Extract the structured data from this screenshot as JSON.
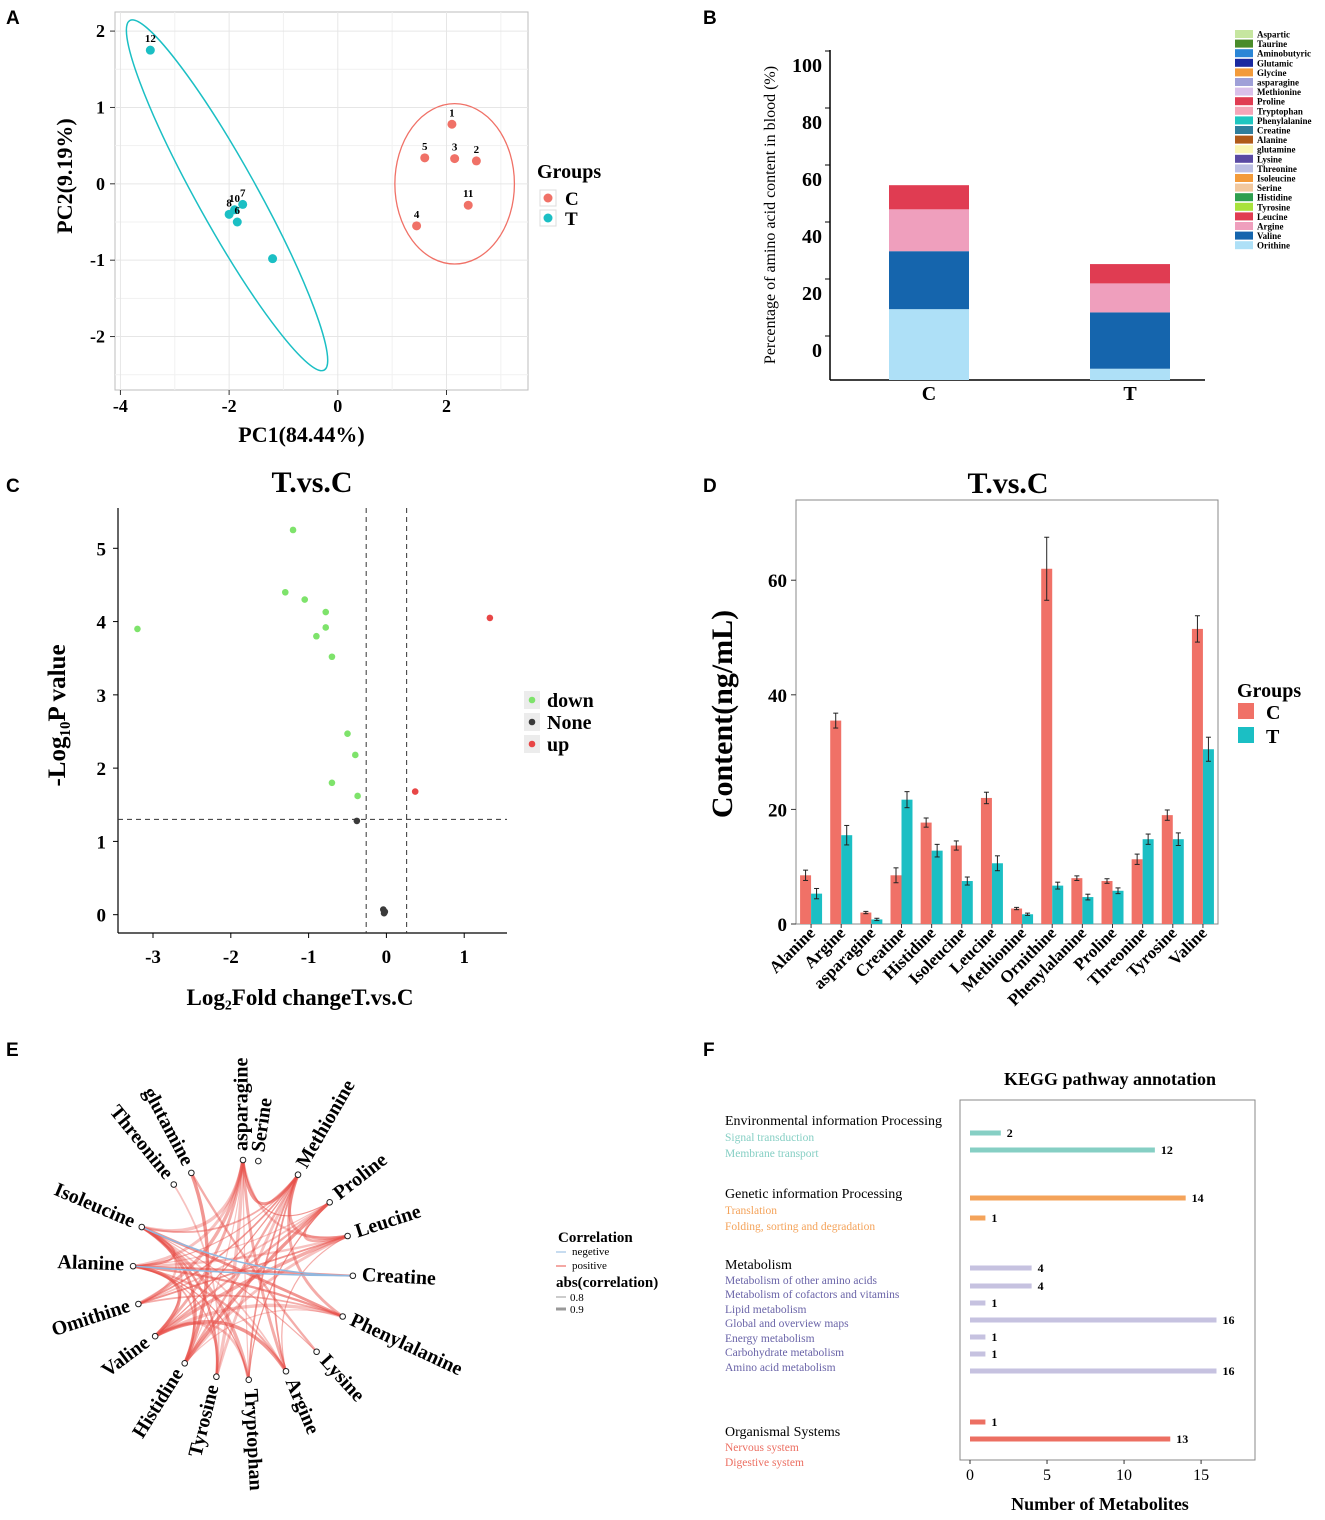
{
  "panel_labels": {
    "a": "A",
    "b": "B",
    "c": "C",
    "d": "D",
    "e": "E",
    "f": "F"
  },
  "colors": {
    "C": "#f07167",
    "T": "#1bbfc4",
    "down": "#7ee36b",
    "none": "#3a3a3a",
    "up": "#e84646"
  },
  "chart_data": [
    {
      "id": "pca",
      "type": "scatter",
      "title": "",
      "xlabel": "PC1(84.44%)",
      "ylabel": "PC2(9.19%)",
      "xlim": [
        -4.1,
        3.5
      ],
      "ylim": [
        -2.7,
        2.25
      ],
      "xticks": [
        -4,
        -2,
        0,
        2
      ],
      "yticks": [
        -2,
        -1,
        0,
        1,
        2
      ],
      "legend_title": "Groups",
      "legend": [
        "C",
        "T"
      ],
      "series": [
        {
          "name": "C",
          "points": [
            {
              "x": 2.1,
              "y": 0.78,
              "label": "1"
            },
            {
              "x": 2.55,
              "y": 0.3,
              "label": "2"
            },
            {
              "x": 2.15,
              "y": 0.33,
              "label": "3"
            },
            {
              "x": 1.45,
              "y": -0.55,
              "label": "4"
            },
            {
              "x": 1.6,
              "y": 0.34,
              "label": "5"
            },
            {
              "x": 2.4,
              "y": -0.28,
              "label": "11"
            }
          ]
        },
        {
          "name": "T",
          "points": [
            {
              "x": -3.45,
              "y": 1.75,
              "label": "12"
            },
            {
              "x": -1.9,
              "y": -0.34,
              "label": "10"
            },
            {
              "x": -1.75,
              "y": -0.27,
              "label": "7"
            },
            {
              "x": -2.0,
              "y": -0.4,
              "label": "8"
            },
            {
              "x": -1.85,
              "y": -0.5,
              "label": "6"
            },
            {
              "x": -1.2,
              "y": -0.98,
              "label": ""
            }
          ]
        }
      ]
    },
    {
      "id": "composition",
      "type": "bar",
      "stacked": true,
      "ylabel": "Percentage of amino acid content in blood (%)",
      "yticks": [
        0,
        20,
        40,
        60,
        80,
        100
      ],
      "categories": [
        "C",
        "T"
      ],
      "legend": [
        "Aspartic",
        "Taurine",
        "Aminobutyric",
        "Glutamic",
        "Glycine",
        "asparagine",
        "Methionine",
        "Proline",
        "Tryptophan",
        "Phenylalanine",
        "Creatine",
        "Alanine",
        "glutamine",
        "Lysine",
        "Threonine",
        "Isoleucine",
        "Serine",
        "Histidine",
        "Tyrosine",
        "Leucine",
        "Argine",
        "Valine",
        "Orithine"
      ],
      "series": [
        {
          "name": "Orithine",
          "color": "#aee0f7",
          "values": [
            22.0,
            3.5
          ]
        },
        {
          "name": "Valine",
          "color": "#1565ad",
          "values": [
            18.0,
            17.5
          ]
        },
        {
          "name": "Argine",
          "color": "#ef9fbd",
          "values": [
            13.0,
            9.0
          ]
        },
        {
          "name": "Leucine",
          "color": "#e03c52",
          "values": [
            7.5,
            6.0
          ]
        },
        {
          "name": "Tyrosine",
          "color": "#a8e23c",
          "values": [
            0,
            0
          ]
        },
        {
          "name": "Histidine",
          "color": "#2e9e4e",
          "values": [
            0,
            0
          ]
        },
        {
          "name": "Serine",
          "color": "#f2c89e",
          "values": [
            0,
            0
          ]
        },
        {
          "name": "Isoleucine",
          "color": "#f39b3a",
          "values": [
            0,
            0
          ]
        },
        {
          "name": "Threonine",
          "color": "#bcbfe3",
          "values": [
            0,
            0
          ]
        },
        {
          "name": "Lysine",
          "color": "#5a4aa3",
          "values": [
            0,
            0
          ]
        },
        {
          "name": "glutamine",
          "color": "#fbf6b4",
          "values": [
            0,
            0
          ]
        },
        {
          "name": "Alanine",
          "color": "#b05a1a",
          "values": [
            0,
            0
          ]
        },
        {
          "name": "Creatine",
          "color": "#2f7e9c",
          "values": [
            0,
            0
          ]
        },
        {
          "name": "Phenylalanine",
          "color": "#1fc6c0",
          "values": [
            0,
            0
          ]
        },
        {
          "name": "Tryptophan",
          "color": "#f5a5b8",
          "values": [
            0,
            0
          ]
        },
        {
          "name": "Proline",
          "color": "#e03c52",
          "values": [
            0,
            0
          ]
        },
        {
          "name": "Methionine",
          "color": "#d9c0ea",
          "values": [
            0,
            0
          ]
        },
        {
          "name": "asparagine",
          "color": "#9fa0d8",
          "values": [
            0,
            0
          ]
        },
        {
          "name": "Glycine",
          "color": "#f39b3a",
          "values": [
            0,
            0
          ]
        },
        {
          "name": "Glutamic",
          "color": "#1a2aa0",
          "values": [
            0,
            0
          ]
        },
        {
          "name": "Aminobutyric",
          "color": "#2a86d6",
          "values": [
            0,
            0
          ]
        },
        {
          "name": "Taurine",
          "color": "#4a8c2a",
          "values": [
            0,
            0
          ]
        },
        {
          "name": "Aspartic",
          "color": "#c6e6a0",
          "values": [
            0,
            0
          ]
        }
      ]
    },
    {
      "id": "volcano",
      "type": "scatter",
      "title": "T.vs.C",
      "xlabel": "Log₂Fold changeT.vs.C",
      "ylabel": "-Log₁₀P value",
      "xlim": [
        -3.45,
        1.55
      ],
      "ylim": [
        -0.25,
        5.55
      ],
      "xticks": [
        -3,
        -2,
        -1,
        0,
        1
      ],
      "yticks": [
        0,
        1,
        2,
        3,
        4,
        5
      ],
      "cutoffs": {
        "x": [
          -0.26,
          0.26
        ],
        "y": 1.3
      },
      "legend": [
        "down",
        "None",
        "up"
      ],
      "series": [
        {
          "name": "down",
          "points": [
            {
              "x": -3.2,
              "y": 3.9
            },
            {
              "x": -1.2,
              "y": 5.25
            },
            {
              "x": -1.3,
              "y": 4.4
            },
            {
              "x": -1.05,
              "y": 4.3
            },
            {
              "x": -0.78,
              "y": 4.13
            },
            {
              "x": -0.78,
              "y": 3.92
            },
            {
              "x": -0.9,
              "y": 3.8
            },
            {
              "x": -0.7,
              "y": 3.52
            },
            {
              "x": -0.5,
              "y": 2.47
            },
            {
              "x": -0.4,
              "y": 2.18
            },
            {
              "x": -0.7,
              "y": 1.8
            },
            {
              "x": -0.37,
              "y": 1.62
            }
          ]
        },
        {
          "name": "None",
          "points": [
            {
              "x": -0.38,
              "y": 1.28
            },
            {
              "x": -0.04,
              "y": 0.07
            },
            {
              "x": -0.02,
              "y": 0.04
            },
            {
              "x": -0.03,
              "y": 0.02
            }
          ]
        },
        {
          "name": "up",
          "points": [
            {
              "x": 1.33,
              "y": 4.05
            },
            {
              "x": 0.37,
              "y": 1.68
            }
          ]
        }
      ]
    },
    {
      "id": "content",
      "type": "bar",
      "title": "T.vs.C",
      "ylabel": "Content(ng/mL)",
      "ylim": [
        0,
        74
      ],
      "yticks": [
        0,
        20,
        40,
        60
      ],
      "legend_title": "Groups",
      "legend": [
        "C",
        "T"
      ],
      "categories": [
        "Alanine",
        "Argine",
        "asparagine",
        "Creatine",
        "Histidine",
        "Isoleucine",
        "Leucine",
        "Methionine",
        "Ornithine",
        "Phenylalanine",
        "Proline",
        "Threonine",
        "Tyrosine",
        "Valine"
      ],
      "series": [
        {
          "name": "C",
          "values": [
            8.5,
            35.5,
            2.0,
            8.5,
            17.7,
            13.7,
            22.0,
            2.7,
            62.0,
            8.0,
            7.5,
            11.3,
            19.0,
            51.5
          ],
          "errors": [
            0.9,
            1.3,
            0.2,
            1.3,
            0.8,
            0.8,
            1.0,
            0.2,
            5.5,
            0.4,
            0.4,
            0.9,
            0.9,
            2.3
          ]
        },
        {
          "name": "T",
          "values": [
            5.3,
            15.5,
            0.8,
            21.7,
            12.8,
            7.5,
            10.6,
            1.7,
            6.7,
            4.7,
            5.8,
            14.8,
            14.8,
            30.5
          ],
          "errors": [
            0.9,
            1.7,
            0.2,
            1.4,
            1.1,
            0.7,
            1.3,
            0.2,
            0.6,
            0.5,
            0.5,
            0.9,
            1.1,
            2.1
          ]
        }
      ]
    },
    {
      "id": "correlation",
      "type": "network",
      "nodes": [
        "Serine",
        "Methionine",
        "Proline",
        "Leucine",
        "Creatine",
        "Phenylalanine",
        "Lysine",
        "Argine",
        "Tryptophan",
        "Tyrosine",
        "Histidine",
        "Valine",
        "Omithine",
        "Alanine",
        "Isoleucine",
        "Threonine",
        "glutamine",
        "asparagine"
      ],
      "legend": {
        "title": "Correlation",
        "negative": "negetive",
        "positive": "positive",
        "size_title": "abs(correlation)",
        "size_levels": [
          "0.8",
          "0.9"
        ]
      },
      "edges": [
        [
          2,
          13
        ],
        [
          2,
          11
        ],
        [
          2,
          10
        ],
        [
          2,
          12
        ],
        [
          2,
          3
        ],
        [
          2,
          8
        ],
        [
          3,
          13
        ],
        [
          3,
          11
        ],
        [
          3,
          12
        ],
        [
          3,
          10
        ],
        [
          3,
          7
        ],
        [
          5,
          13
        ],
        [
          5,
          11
        ],
        [
          5,
          12
        ],
        [
          5,
          14
        ],
        [
          5,
          10
        ],
        [
          7,
          13
        ],
        [
          7,
          11
        ],
        [
          7,
          14
        ],
        [
          7,
          17
        ],
        [
          8,
          13
        ],
        [
          8,
          11
        ],
        [
          8,
          14
        ],
        [
          8,
          1
        ],
        [
          9,
          1
        ],
        [
          9,
          13
        ],
        [
          9,
          14
        ],
        [
          9,
          17
        ],
        [
          10,
          13
        ],
        [
          10,
          14
        ],
        [
          10,
          17
        ],
        [
          10,
          1
        ],
        [
          11,
          13
        ],
        [
          11,
          14
        ],
        [
          11,
          17
        ],
        [
          11,
          1
        ],
        [
          12,
          14
        ],
        [
          12,
          17
        ],
        [
          12,
          1
        ],
        [
          13,
          17
        ],
        [
          13,
          1
        ],
        [
          13,
          14
        ],
        [
          14,
          17
        ],
        [
          14,
          1
        ],
        [
          17,
          1
        ],
        [
          17,
          8
        ],
        [
          16,
          6
        ],
        [
          16,
          10
        ],
        [
          15,
          9
        ],
        [
          5,
          1
        ],
        [
          2,
          17
        ],
        [
          3,
          17
        ],
        [
          3,
          1
        ],
        [
          7,
          1
        ],
        [
          9,
          11
        ],
        [
          6,
          14
        ],
        [
          4,
          13
        ]
      ],
      "negative_edges": [
        [
          4,
          13
        ],
        [
          4,
          14
        ]
      ]
    },
    {
      "id": "kegg",
      "type": "bar",
      "orientation": "horizontal",
      "title": "KEGG pathway annotation",
      "xlabel": "Number of Metabolites",
      "xlim": [
        0,
        18.5
      ],
      "xticks": [
        0,
        5,
        10,
        15
      ],
      "groups": [
        {
          "name": "Environmental information Processing",
          "color": "#86cfc4",
          "items": [
            {
              "label": "Signal transduction",
              "value": 2
            },
            {
              "label": "Membrane transport",
              "value": 12
            }
          ]
        },
        {
          "name": "Genetic information Processing",
          "color": "#f4a35a",
          "items": [
            {
              "label": "Translation",
              "value": 14
            },
            {
              "label": "Folding, sorting and degradation",
              "value": 1
            }
          ]
        },
        {
          "name": "Metabolism",
          "color": "#c6c2e0",
          "items": [
            {
              "label": "Metabolism of other amino acids",
              "value": 4
            },
            {
              "label": "Metabolism of cofactors and vitamins",
              "value": 4
            },
            {
              "label": "Lipid metabolism",
              "value": 1
            },
            {
              "label": "Global and overview maps",
              "value": 16
            },
            {
              "label": "Energy metabolism",
              "value": 1
            },
            {
              "label": "Carbohydrate metabolism",
              "value": 1
            },
            {
              "label": "Amino acid metabolism",
              "value": 16
            }
          ]
        },
        {
          "name": "Organismal Systems",
          "color": "#ec6f62",
          "items": [
            {
              "label": "Nervous system",
              "value": 1
            },
            {
              "label": "Digestive system",
              "value": 13
            }
          ]
        }
      ]
    }
  ]
}
